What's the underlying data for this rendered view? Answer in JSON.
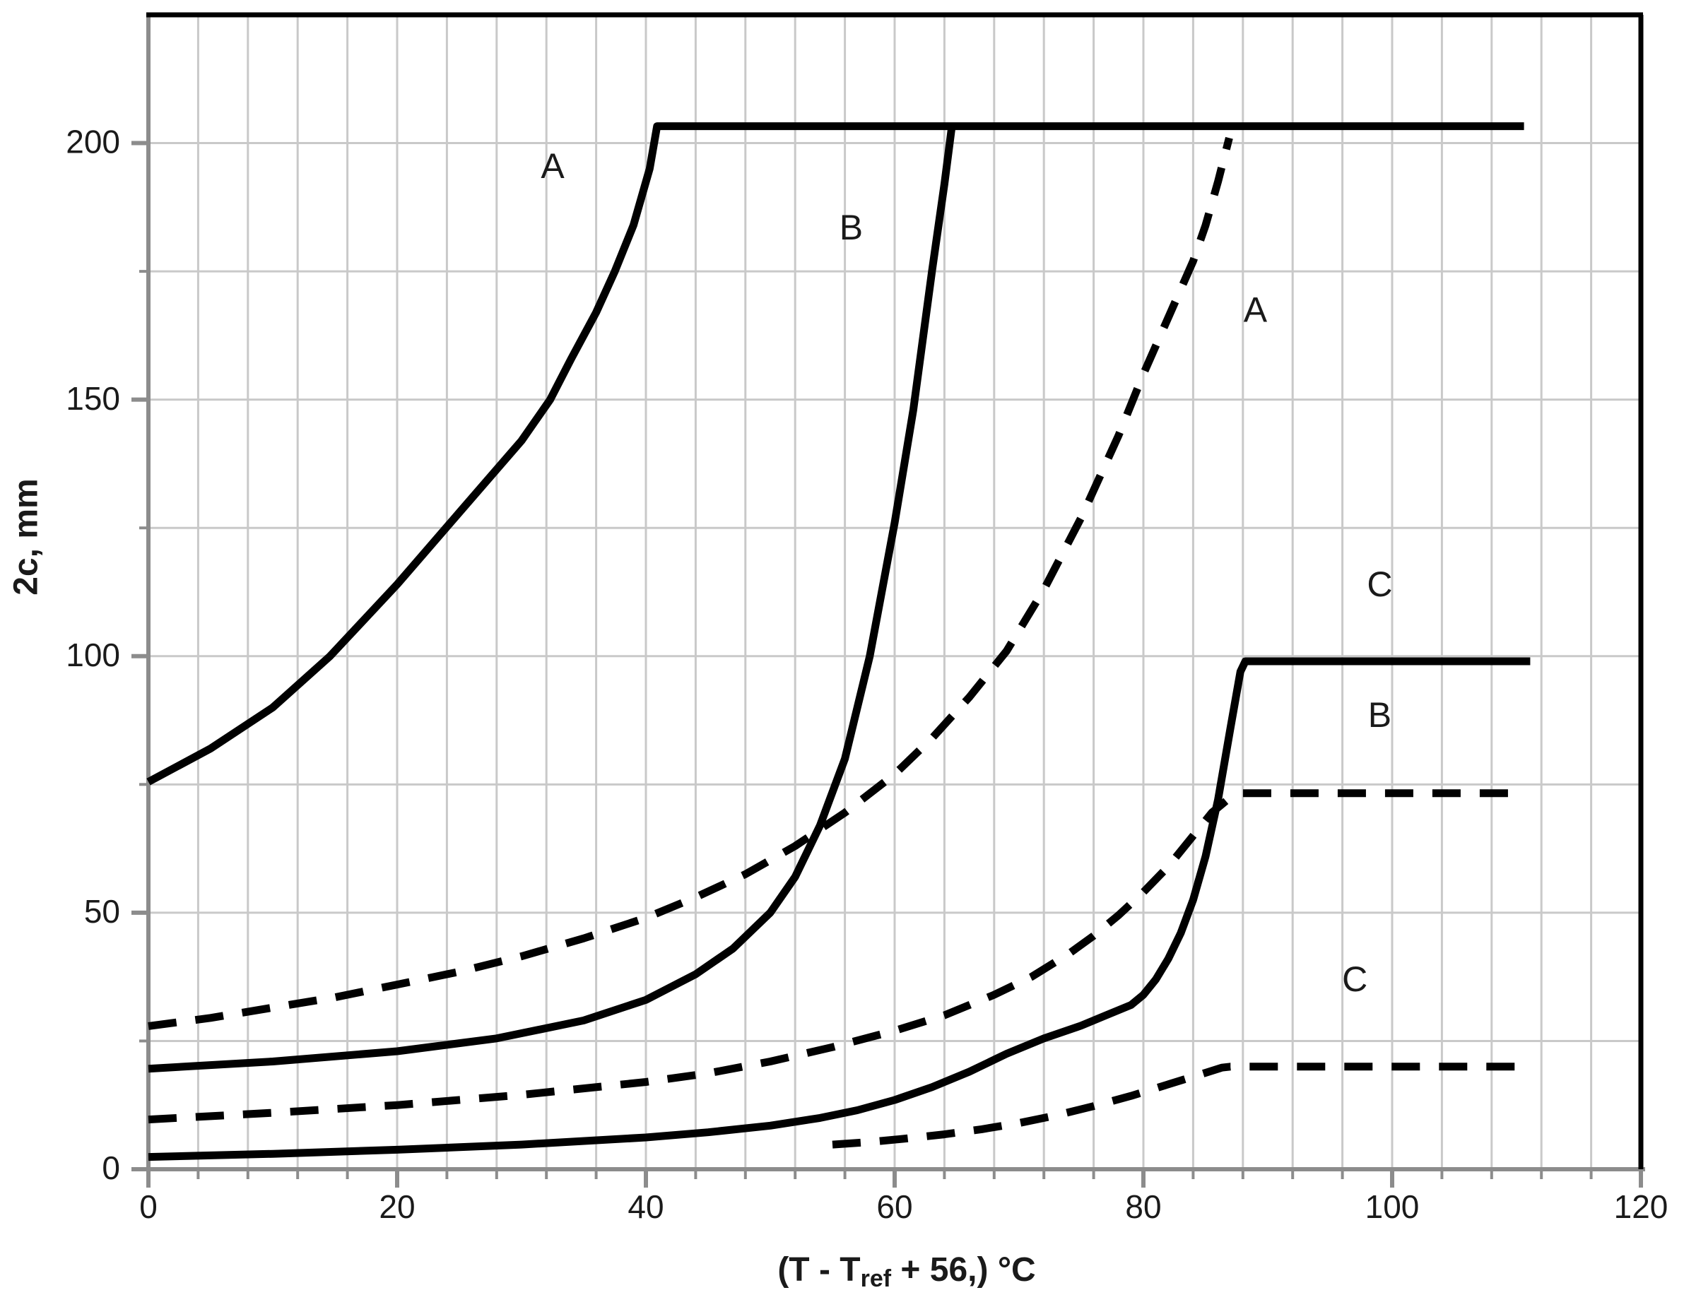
{
  "colors": {
    "background": "#ffffff",
    "curve": "#000000",
    "axis": "#8c8c8c",
    "grid": "#c9c9c9",
    "frame": "#000000",
    "text": "#1a1a1a"
  },
  "chart_data": {
    "type": "line",
    "title": "",
    "ylabel": "2c, mm",
    "xlabel_prefix": "(T - T",
    "xlabel_sub": "ref",
    "xlabel_suffix": " + 56,) ",
    "xlabel_unit": "°C",
    "xlim": [
      0,
      120
    ],
    "ylim": [
      0,
      225
    ],
    "x_ticks": [
      0,
      20,
      40,
      60,
      80,
      100,
      120
    ],
    "y_ticks": [
      0,
      50,
      100,
      150,
      200
    ],
    "x_minor_step": 4,
    "y_minor_step": 25,
    "grid": "on",
    "legend_position": "none",
    "series": [
      {
        "name": "A-solid",
        "style": "solid",
        "label": {
          "text": "A",
          "x": 32.5,
          "y": 195
        },
        "points": [
          [
            0,
            75.5
          ],
          [
            5,
            82
          ],
          [
            10,
            90
          ],
          [
            14.6,
            100
          ],
          [
            20,
            114
          ],
          [
            25,
            128
          ],
          [
            30,
            142
          ],
          [
            32.3,
            150
          ],
          [
            34,
            158
          ],
          [
            36,
            167
          ],
          [
            37.5,
            175
          ],
          [
            39,
            184
          ],
          [
            40.3,
            195
          ],
          [
            40.9,
            203.3
          ],
          [
            110.6,
            203.3
          ]
        ]
      },
      {
        "name": "B-solid",
        "style": "solid",
        "label": {
          "text": "B",
          "x": 56.5,
          "y": 183
        },
        "points": [
          [
            0,
            19.6
          ],
          [
            10,
            21
          ],
          [
            20,
            23
          ],
          [
            28,
            25.5
          ],
          [
            35,
            29
          ],
          [
            40,
            33
          ],
          [
            44,
            38
          ],
          [
            47,
            43
          ],
          [
            50,
            50
          ],
          [
            52,
            57
          ],
          [
            54,
            67
          ],
          [
            56,
            80
          ],
          [
            58,
            100
          ],
          [
            60,
            126
          ],
          [
            61.5,
            148
          ],
          [
            63,
            175
          ],
          [
            64,
            192
          ],
          [
            64.6,
            203.3
          ]
        ]
      },
      {
        "name": "C-solid",
        "style": "solid",
        "label": {
          "text": "C",
          "x": 99,
          "y": 113.5
        },
        "points": [
          [
            0,
            2.4
          ],
          [
            10,
            3
          ],
          [
            20,
            3.8
          ],
          [
            30,
            4.8
          ],
          [
            40,
            6.2
          ],
          [
            45,
            7.2
          ],
          [
            50,
            8.5
          ],
          [
            54,
            10
          ],
          [
            57,
            11.5
          ],
          [
            60,
            13.5
          ],
          [
            63,
            16
          ],
          [
            66,
            19
          ],
          [
            69,
            22.5
          ],
          [
            72,
            25.5
          ],
          [
            75,
            28
          ],
          [
            77,
            30
          ],
          [
            79,
            32
          ],
          [
            80,
            34
          ],
          [
            81,
            37
          ],
          [
            82,
            41
          ],
          [
            83,
            46
          ],
          [
            84,
            52.5
          ],
          [
            85,
            61
          ],
          [
            86,
            72
          ],
          [
            87,
            86
          ],
          [
            87.8,
            97
          ],
          [
            88.2,
            99
          ],
          [
            111.1,
            99
          ]
        ]
      },
      {
        "name": "A-dashed",
        "style": "dashed",
        "label": {
          "text": "A",
          "x": 89,
          "y": 167
        },
        "points": [
          [
            0,
            27.9
          ],
          [
            5,
            29.5
          ],
          [
            10,
            31.5
          ],
          [
            15,
            33.5
          ],
          [
            20,
            36
          ],
          [
            25,
            38.5
          ],
          [
            30,
            41.5
          ],
          [
            35,
            45
          ],
          [
            40,
            49
          ],
          [
            44,
            53
          ],
          [
            48,
            57.5
          ],
          [
            52,
            63
          ],
          [
            56,
            69.5
          ],
          [
            60,
            77
          ],
          [
            63,
            84
          ],
          [
            66,
            92
          ],
          [
            69,
            101
          ],
          [
            72,
            113
          ],
          [
            75,
            127
          ],
          [
            78,
            143
          ],
          [
            80,
            155
          ],
          [
            82,
            166
          ],
          [
            84,
            177
          ],
          [
            85,
            184
          ],
          [
            86,
            192.5
          ],
          [
            86.9,
            201
          ]
        ]
      },
      {
        "name": "B-dashed",
        "style": "dashed",
        "label": {
          "text": "B",
          "x": 99,
          "y": 88
        },
        "points": [
          [
            0,
            9.7
          ],
          [
            10,
            11
          ],
          [
            20,
            12.5
          ],
          [
            30,
            14.5
          ],
          [
            40,
            17
          ],
          [
            45,
            18.7
          ],
          [
            50,
            21
          ],
          [
            55,
            23.8
          ],
          [
            60,
            27
          ],
          [
            64,
            30
          ],
          [
            68,
            34
          ],
          [
            71,
            37.5
          ],
          [
            74,
            42
          ],
          [
            76,
            45.5
          ],
          [
            78,
            49.5
          ],
          [
            80,
            54
          ],
          [
            82,
            59
          ],
          [
            84,
            65
          ],
          [
            85.5,
            69.5
          ],
          [
            87,
            72.5
          ],
          [
            88,
            73.3
          ],
          [
            110,
            73.3
          ]
        ]
      },
      {
        "name": "C-dashed",
        "style": "dashed",
        "label": {
          "text": "C",
          "x": 97,
          "y": 36.5
        },
        "points": [
          [
            55,
            4.8
          ],
          [
            58,
            5.3
          ],
          [
            61,
            6
          ],
          [
            64,
            6.8
          ],
          [
            67,
            7.8
          ],
          [
            70,
            9
          ],
          [
            73,
            10.5
          ],
          [
            76,
            12.3
          ],
          [
            79,
            14.3
          ],
          [
            81,
            15.8
          ],
          [
            83,
            17.3
          ],
          [
            85,
            18.8
          ],
          [
            86.3,
            19.8
          ],
          [
            87,
            20
          ],
          [
            110.9,
            20
          ]
        ]
      }
    ]
  }
}
